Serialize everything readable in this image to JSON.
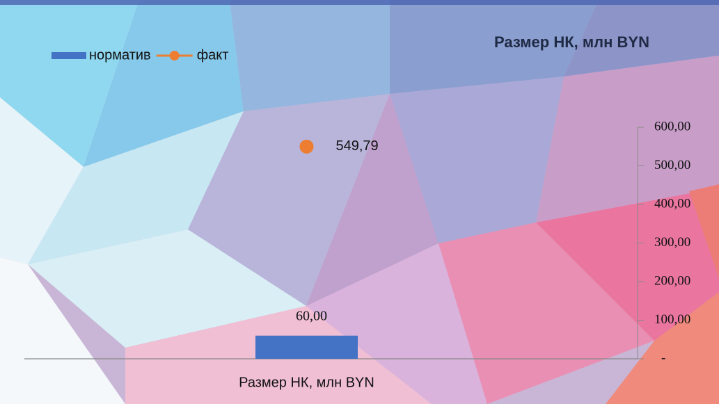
{
  "chart_data": {
    "type": "combo",
    "title": "Размер НК, млн BYN",
    "categories": [
      "Размер НК, млн BYN"
    ],
    "series": [
      {
        "name": "норматив",
        "type": "bar",
        "color": "#4472c4",
        "values": [
          60
        ],
        "value_labels": [
          "60,00"
        ]
      },
      {
        "name": "факт",
        "type": "line",
        "color": "#ed7d31",
        "values": [
          549.79
        ],
        "value_labels": [
          "549,79"
        ]
      }
    ],
    "ylim": [
      0,
      600
    ],
    "yticks": [
      {
        "value": 0,
        "label": "-"
      },
      {
        "value": 100,
        "label": "100,00"
      },
      {
        "value": 200,
        "label": "200,00"
      },
      {
        "value": 300,
        "label": "300,00"
      },
      {
        "value": 400,
        "label": "400,00"
      },
      {
        "value": 500,
        "label": "500,00"
      },
      {
        "value": 600,
        "label": "600,00"
      }
    ],
    "legend": "top-left"
  }
}
